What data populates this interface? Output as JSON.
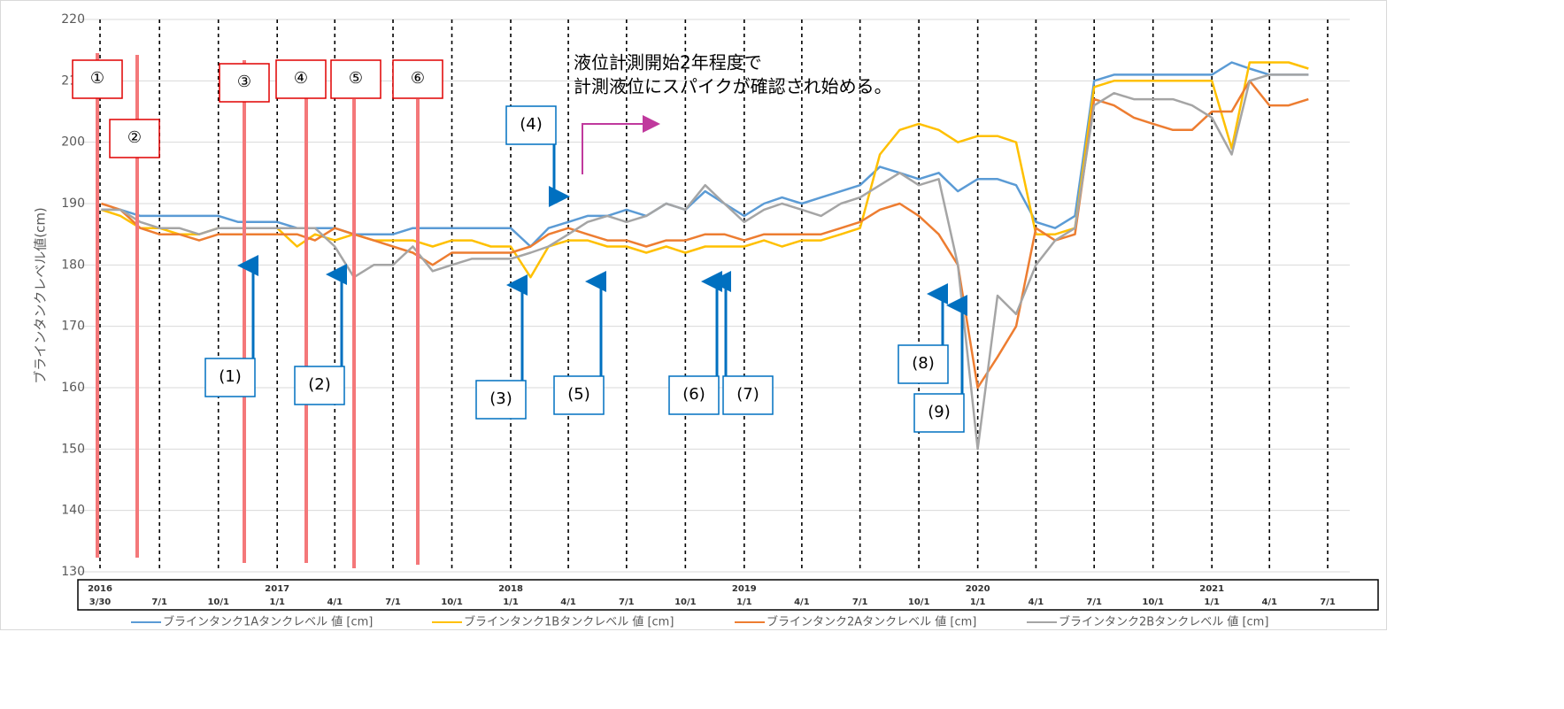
{
  "chart_data": {
    "type": "line",
    "y_label": "ブラインタンクレベル値(cm)",
    "ylim": [
      130,
      220
    ],
    "yticks": [
      130,
      140,
      150,
      160,
      170,
      180,
      190,
      200,
      210,
      220
    ],
    "grid": true,
    "xlim": [
      "2016-03-30",
      "2021-07-01"
    ],
    "xticks": [
      {
        "value": "2016-03-30",
        "label": "3/30"
      },
      {
        "value": "2016-07-01",
        "label": "7/1"
      },
      {
        "value": "2016-10-01",
        "label": "10/1"
      },
      {
        "value": "2017-01-01",
        "label": "1/1"
      },
      {
        "value": "2017-04-01",
        "label": "4/1"
      },
      {
        "value": "2017-07-01",
        "label": "7/1"
      },
      {
        "value": "2017-10-01",
        "label": "10/1"
      },
      {
        "value": "2018-01-01",
        "label": "1/1"
      },
      {
        "value": "2018-04-01",
        "label": "4/1"
      },
      {
        "value": "2018-07-01",
        "label": "7/1"
      },
      {
        "value": "2018-10-01",
        "label": "10/1"
      },
      {
        "value": "2019-01-01",
        "label": "1/1"
      },
      {
        "value": "2019-04-01",
        "label": "4/1"
      },
      {
        "value": "2019-07-01",
        "label": "7/1"
      },
      {
        "value": "2019-10-01",
        "label": "10/1"
      },
      {
        "value": "2020-01-01",
        "label": "1/1"
      },
      {
        "value": "2020-04-01",
        "label": "4/1"
      },
      {
        "value": "2020-07-01",
        "label": "7/1"
      },
      {
        "value": "2020-10-01",
        "label": "10/1"
      },
      {
        "value": "2021-01-01",
        "label": "1/1"
      },
      {
        "value": "2021-04-01",
        "label": "4/1"
      },
      {
        "value": "2021-07-01",
        "label": "7/1"
      }
    ],
    "year_labels": [
      {
        "value": "2016-03-30",
        "label": "2016"
      },
      {
        "value": "2017-01-01",
        "label": "2017"
      },
      {
        "value": "2018-01-01",
        "label": "2018"
      },
      {
        "value": "2019-01-01",
        "label": "2019"
      },
      {
        "value": "2020-01-01",
        "label": "2020"
      },
      {
        "value": "2021-01-01",
        "label": "2021"
      }
    ],
    "x": [
      "2016-04-01",
      "2016-05-01",
      "2016-06-01",
      "2016-07-01",
      "2016-08-01",
      "2016-09-01",
      "2016-10-01",
      "2016-11-01",
      "2016-12-01",
      "2017-01-01",
      "2017-02-01",
      "2017-03-01",
      "2017-04-01",
      "2017-05-01",
      "2017-06-01",
      "2017-07-01",
      "2017-08-01",
      "2017-09-01",
      "2017-10-01",
      "2017-11-01",
      "2017-12-01",
      "2018-01-01",
      "2018-02-01",
      "2018-03-01",
      "2018-04-01",
      "2018-05-01",
      "2018-06-01",
      "2018-07-01",
      "2018-08-01",
      "2018-09-01",
      "2018-10-01",
      "2018-11-01",
      "2018-12-01",
      "2019-01-01",
      "2019-02-01",
      "2019-03-01",
      "2019-04-01",
      "2019-05-01",
      "2019-06-01",
      "2019-07-01",
      "2019-08-01",
      "2019-09-01",
      "2019-10-01",
      "2019-11-01",
      "2019-12-01",
      "2020-01-01",
      "2020-02-01",
      "2020-03-01",
      "2020-04-01",
      "2020-05-01",
      "2020-06-01",
      "2020-07-01",
      "2020-08-01",
      "2020-09-01",
      "2020-10-01",
      "2020-11-01",
      "2020-12-01",
      "2021-01-01",
      "2021-02-01",
      "2021-03-01",
      "2021-04-01",
      "2021-05-01",
      "2021-06-01"
    ],
    "series": [
      {
        "name": "ブラインタンク1Aタンクレベル 値 [cm]",
        "color": "#5b9bd5",
        "values": [
          189,
          189,
          188,
          188,
          188,
          188,
          188,
          187,
          187,
          187,
          186,
          186,
          186,
          185,
          185,
          185,
          186,
          186,
          186,
          186,
          186,
          186,
          183,
          186,
          187,
          188,
          188,
          189,
          188,
          190,
          189,
          192,
          190,
          188,
          190,
          191,
          190,
          191,
          192,
          193,
          196,
          195,
          194,
          195,
          192,
          194,
          194,
          193,
          187,
          186,
          188,
          210,
          211,
          211,
          211,
          211,
          211,
          211,
          213,
          212,
          211,
          211,
          211
        ]
      },
      {
        "name": "ブラインタンク1Bタンクレベル 値 [cm]",
        "color": "#ffc000",
        "values": [
          189,
          188,
          186,
          186,
          185,
          185,
          186,
          186,
          186,
          186,
          183,
          185,
          184,
          185,
          184,
          184,
          184,
          183,
          184,
          184,
          183,
          183,
          178,
          183,
          184,
          184,
          183,
          183,
          182,
          183,
          182,
          183,
          183,
          183,
          184,
          183,
          184,
          184,
          185,
          186,
          198,
          202,
          203,
          202,
          200,
          201,
          201,
          200,
          185,
          185,
          186,
          209,
          210,
          210,
          210,
          210,
          210,
          210,
          199,
          213,
          213,
          213,
          212
        ]
      },
      {
        "name": "ブラインタンク2Aタンクレベル 値 [cm]",
        "color": "#ed7d31",
        "values": [
          190,
          189,
          186,
          185,
          185,
          184,
          185,
          185,
          185,
          185,
          185,
          184,
          186,
          185,
          184,
          183,
          182,
          180,
          182,
          182,
          182,
          182,
          183,
          185,
          186,
          185,
          184,
          184,
          183,
          184,
          184,
          185,
          185,
          184,
          185,
          185,
          185,
          185,
          186,
          187,
          189,
          190,
          188,
          185,
          180,
          160,
          165,
          170,
          186,
          184,
          185,
          207,
          206,
          204,
          203,
          202,
          202,
          205,
          205,
          210,
          206,
          206,
          207
        ]
      },
      {
        "name": "ブラインタンク2Bタンクレベル 値 [cm]",
        "color": "#a5a5a5",
        "values": [
          189,
          189,
          187,
          186,
          186,
          185,
          186,
          186,
          186,
          186,
          186,
          186,
          183,
          178,
          180,
          180,
          183,
          179,
          180,
          181,
          181,
          181,
          182,
          183,
          185,
          187,
          188,
          187,
          188,
          190,
          189,
          193,
          190,
          187,
          189,
          190,
          189,
          188,
          190,
          191,
          193,
          195,
          193,
          194,
          180,
          150,
          175,
          172,
          180,
          184,
          186,
          206,
          208,
          207,
          207,
          207,
          206,
          204,
          198,
          210,
          211,
          211,
          211
        ]
      }
    ],
    "annotations": {
      "red_markers": [
        "①",
        "②",
        "③",
        "④",
        "⑤",
        "⑥"
      ],
      "blue_markers": [
        "(1)",
        "(2)",
        "(3)",
        "(4)",
        "(5)",
        "(6)",
        "(7)",
        "(8)",
        "(9)"
      ],
      "note": [
        "液位計測開始2年程度で",
        "計測液位にスパイクが確認され始める。"
      ]
    }
  }
}
